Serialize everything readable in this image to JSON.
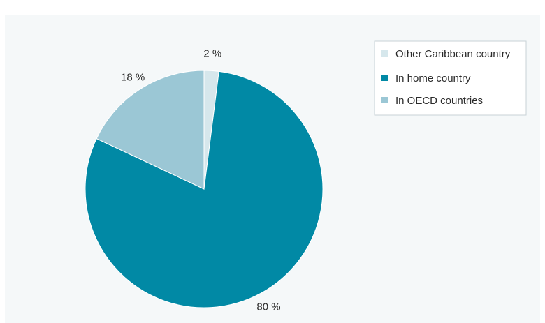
{
  "chart_data": {
    "type": "pie",
    "categories": [
      "Other Caribbean country",
      "In home country",
      "In OECD countries"
    ],
    "values": [
      2,
      80,
      18
    ],
    "data_labels": [
      "2 %",
      "80 %",
      "18 %"
    ],
    "colors": [
      "#d6e7ec",
      "#0189a5",
      "#9bc7d5"
    ],
    "legend": {
      "placement": "top-right",
      "items": [
        "Other Caribbean country",
        "In home country",
        "In OECD countries"
      ]
    }
  }
}
